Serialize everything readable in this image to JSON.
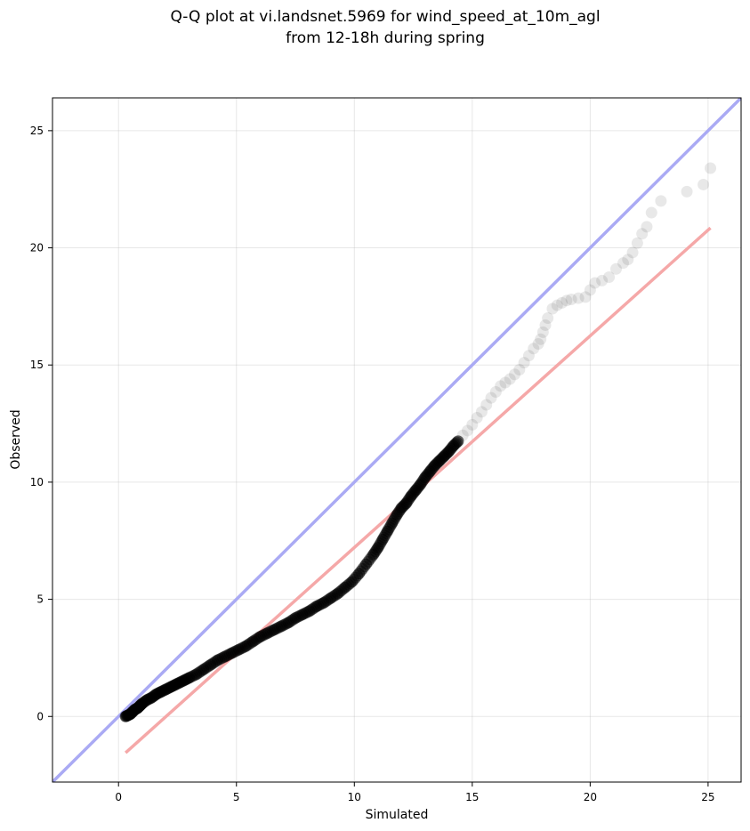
{
  "chart_data": {
    "type": "scatter",
    "title": [
      "Q-Q plot at vi.landsnet.5969 for wind_speed_at_10m_agl",
      "from 12-18h during spring"
    ],
    "xlabel": "Simulated",
    "ylabel": "Observed",
    "xlim": [
      -2.8,
      26.4
    ],
    "ylim": [
      -2.8,
      26.4
    ],
    "xticks": [
      0,
      5,
      10,
      15,
      20,
      25
    ],
    "yticks": [
      0,
      5,
      10,
      15,
      20,
      25
    ],
    "grid": true,
    "legend": "none",
    "identity_line": {
      "x": [
        -2.8,
        26.4
      ],
      "y": [
        -2.8,
        26.4
      ],
      "color": "#aaaaf4"
    },
    "fit_line": {
      "x": [
        0.3,
        25.1
      ],
      "y": [
        -1.55,
        20.85
      ],
      "color": "#f5a8a8"
    },
    "points_color": "#000000",
    "qq_points": {
      "x": [
        0.3,
        0.4,
        0.5,
        0.6,
        0.7,
        0.8,
        0.9,
        1.0,
        1.2,
        1.4,
        1.6,
        1.8,
        2.0,
        2.2,
        2.4,
        2.6,
        2.8,
        3.0,
        3.3,
        3.6,
        3.9,
        4.2,
        4.5,
        4.8,
        5.1,
        5.4,
        5.7,
        6.0,
        6.3,
        6.6,
        6.9,
        7.2,
        7.5,
        7.8,
        8.1,
        8.4,
        8.7,
        9.0,
        9.3,
        9.6,
        9.9,
        10.2,
        10.5,
        10.8,
        11.0,
        11.2,
        11.4,
        11.6,
        11.8,
        12.0,
        12.2,
        12.4,
        12.6,
        12.8,
        13.0,
        13.2,
        13.4,
        13.6,
        13.8,
        14.0,
        14.2,
        14.4,
        14.6,
        14.8,
        15.0,
        15.2,
        15.4,
        15.6,
        15.8,
        16.0,
        16.2,
        16.4,
        16.6,
        16.8,
        17.0,
        17.2,
        17.4,
        17.6,
        17.8,
        17.9,
        18.0,
        18.1,
        18.2,
        18.4,
        18.6,
        18.8,
        19.0,
        19.2,
        19.5,
        19.8,
        20.0,
        20.2,
        20.5,
        20.8,
        21.1,
        21.4,
        21.6,
        21.8,
        22.0,
        22.2,
        22.4,
        22.6,
        23.0,
        24.1,
        24.8,
        25.1
      ],
      "y": [
        0.0,
        0.05,
        0.1,
        0.2,
        0.3,
        0.35,
        0.45,
        0.55,
        0.7,
        0.8,
        0.95,
        1.05,
        1.15,
        1.25,
        1.35,
        1.45,
        1.55,
        1.65,
        1.8,
        2.0,
        2.2,
        2.4,
        2.55,
        2.7,
        2.85,
        3.0,
        3.2,
        3.4,
        3.55,
        3.7,
        3.85,
        4.0,
        4.2,
        4.35,
        4.5,
        4.7,
        4.85,
        5.05,
        5.25,
        5.5,
        5.75,
        6.1,
        6.5,
        6.9,
        7.2,
        7.55,
        7.9,
        8.25,
        8.6,
        8.9,
        9.1,
        9.4,
        9.65,
        9.9,
        10.2,
        10.45,
        10.7,
        10.9,
        11.1,
        11.3,
        11.55,
        11.75,
        12.0,
        12.2,
        12.45,
        12.75,
        13.0,
        13.3,
        13.6,
        13.85,
        14.1,
        14.25,
        14.4,
        14.6,
        14.8,
        15.1,
        15.4,
        15.7,
        15.9,
        16.1,
        16.4,
        16.7,
        17.0,
        17.4,
        17.55,
        17.65,
        17.75,
        17.8,
        17.85,
        17.9,
        18.2,
        18.5,
        18.6,
        18.75,
        19.1,
        19.35,
        19.5,
        19.8,
        20.2,
        20.6,
        20.9,
        21.5,
        22.0,
        22.4,
        22.7,
        23.4
      ]
    },
    "points_alpha_break": 14.5
  }
}
